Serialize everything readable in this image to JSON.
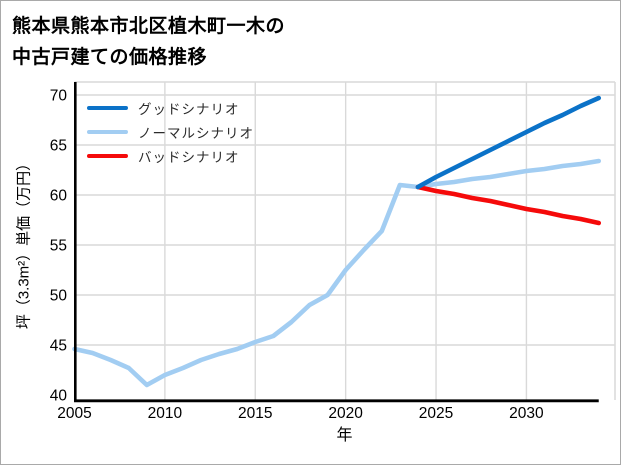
{
  "header": {
    "title_line1": "熊本県熊本市北区植木町一木の",
    "title_line2": "中古戸建ての価格推移"
  },
  "chart_data": {
    "type": "line",
    "title": "熊本県熊本市北区植木町一木の中古戸建ての価格推移",
    "xlabel": "年",
    "ylabel": "坪（3.3m²）単価（万円）",
    "xlim": [
      2005,
      2034.9
    ],
    "ylim": [
      39.5,
      71.3
    ],
    "x_ticks": [
      2005,
      2010,
      2015,
      2020,
      2025,
      2030
    ],
    "y_ticks": [
      40,
      45,
      50,
      55,
      60,
      65,
      70
    ],
    "grid": true,
    "legend_position": "upper-left",
    "colors": {
      "grid": "#d9d9d9",
      "frame": "#d9d9d9",
      "axis": "#000000",
      "good": "#0b72c8",
      "normal": "#a2cdf2",
      "bad": "#f50a0a"
    },
    "series": [
      {
        "name": "グッドシナリオ",
        "color": "#0b72c8",
        "x": [
          2024,
          2025,
          2026,
          2027,
          2028,
          2029,
          2030,
          2031,
          2032,
          2033,
          2034
        ],
        "y": [
          60.8,
          61.8,
          62.7,
          63.6,
          64.5,
          65.4,
          66.3,
          67.2,
          68.0,
          68.9,
          69.7
        ]
      },
      {
        "name": "ノーマルシナリオ",
        "color": "#a2cdf2",
        "x": [
          2005,
          2006,
          2007,
          2008,
          2009,
          2010,
          2011,
          2012,
          2013,
          2014,
          2015,
          2016,
          2017,
          2018,
          2019,
          2020,
          2021,
          2022,
          2023,
          2024,
          2025,
          2026,
          2027,
          2028,
          2029,
          2030,
          2031,
          2032,
          2033,
          2034
        ],
        "y": [
          44.6,
          44.2,
          43.5,
          42.7,
          41.0,
          42.0,
          42.7,
          43.5,
          44.1,
          44.6,
          45.3,
          45.9,
          47.3,
          49.0,
          50.0,
          52.5,
          54.5,
          56.4,
          61.0,
          60.8,
          61.1,
          61.3,
          61.6,
          61.8,
          62.1,
          62.4,
          62.6,
          62.9,
          63.1,
          63.4
        ]
      },
      {
        "name": "バッドシナリオ",
        "color": "#f50a0a",
        "x": [
          2024,
          2025,
          2026,
          2027,
          2028,
          2029,
          2030,
          2031,
          2032,
          2033,
          2034
        ],
        "y": [
          60.8,
          60.4,
          60.1,
          59.7,
          59.4,
          59.0,
          58.6,
          58.3,
          57.9,
          57.6,
          57.2
        ]
      }
    ]
  }
}
